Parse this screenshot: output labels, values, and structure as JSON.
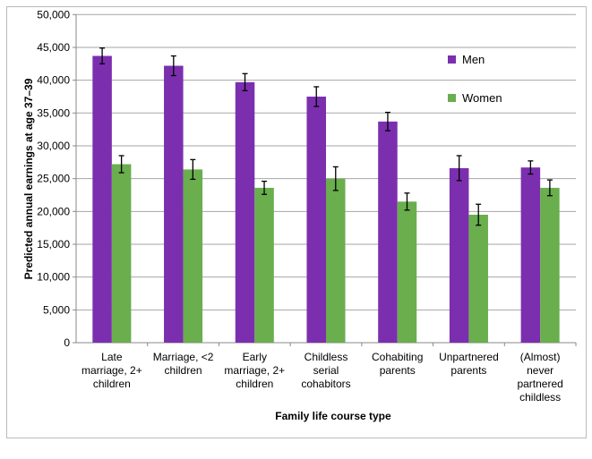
{
  "chart_data": {
    "type": "bar",
    "title": "",
    "xlabel": "Family life course type",
    "ylabel": "Predicted annual earnings at age 37–39",
    "ylim": [
      0,
      50000
    ],
    "yticks": [
      "0",
      "5,000",
      "10,000",
      "15,000",
      "20,000",
      "25,000",
      "30,000",
      "35,000",
      "40,000",
      "45,000",
      "50,000"
    ],
    "ytick_values": [
      0,
      5000,
      10000,
      15000,
      20000,
      25000,
      30000,
      35000,
      40000,
      45000,
      50000
    ],
    "grid": true,
    "legend_position": "top-right",
    "categories": [
      [
        "Late",
        "marriage, 2+",
        "children"
      ],
      [
        "Marriage, <2",
        "children"
      ],
      [
        "Early",
        "marriage, 2+",
        "children"
      ],
      [
        "Childless",
        "serial",
        "cohabitors"
      ],
      [
        "Cohabiting",
        "parents"
      ],
      [
        "Unpartnered",
        "parents"
      ],
      [
        "(Almost)",
        "never",
        "partnered",
        "childless"
      ]
    ],
    "series": [
      {
        "name": "Men",
        "color": "#7B2FAF",
        "values": [
          43700,
          42200,
          39700,
          37500,
          33700,
          26600,
          26700
        ],
        "error": [
          1200,
          1500,
          1300,
          1500,
          1400,
          1900,
          1000
        ]
      },
      {
        "name": "Women",
        "color": "#6AAE4E",
        "values": [
          27200,
          26400,
          23600,
          25000,
          21500,
          19500,
          23600
        ],
        "error": [
          1300,
          1500,
          1000,
          1800,
          1300,
          1600,
          1200
        ]
      }
    ]
  }
}
